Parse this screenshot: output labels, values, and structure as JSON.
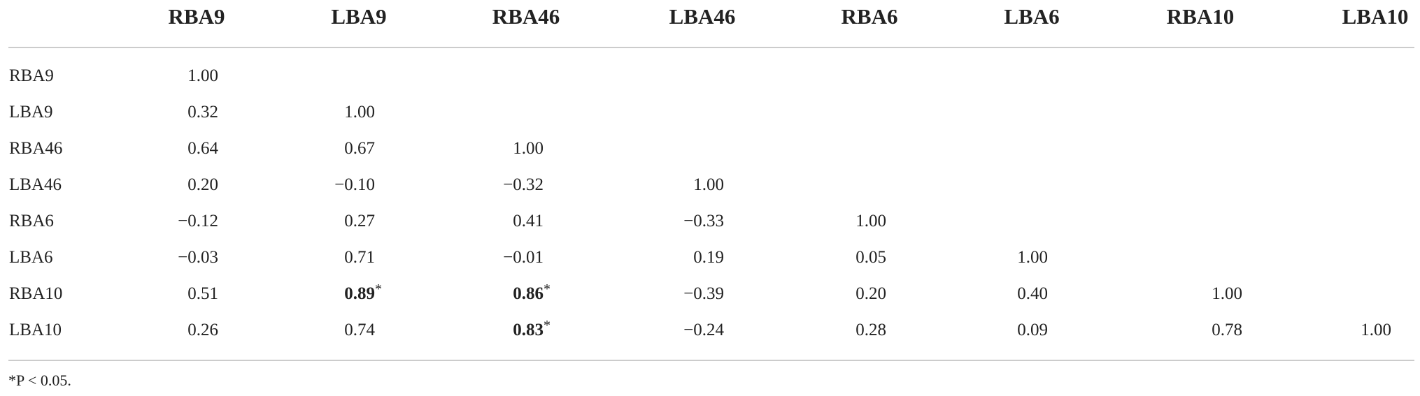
{
  "table": {
    "columns": [
      "RBA9",
      "LBA9",
      "RBA46",
      "LBA46",
      "RBA6",
      "LBA6",
      "RBA10",
      "LBA10"
    ],
    "rows": [
      {
        "label": "RBA9",
        "cells": [
          "1.00"
        ]
      },
      {
        "label": "LBA9",
        "cells": [
          "0.32",
          "1.00"
        ]
      },
      {
        "label": "RBA46",
        "cells": [
          "0.64",
          "0.67",
          "1.00"
        ]
      },
      {
        "label": "LBA46",
        "cells": [
          "0.20",
          "−0.10",
          "−0.32",
          "1.00"
        ]
      },
      {
        "label": "RBA6",
        "cells": [
          "−0.12",
          "0.27",
          "0.41",
          "−0.33",
          "1.00"
        ]
      },
      {
        "label": "LBA6",
        "cells": [
          "−0.03",
          "0.71",
          "−0.01",
          "0.19",
          "0.05",
          "1.00"
        ]
      },
      {
        "label": "RBA10",
        "cells": [
          "0.51",
          {
            "value": "0.89",
            "note": "*"
          },
          {
            "value": "0.86",
            "note": "*"
          },
          "−0.39",
          "0.20",
          "0.40",
          "1.00"
        ]
      },
      {
        "label": "LBA10",
        "cells": [
          "0.26",
          "0.74",
          {
            "value": "0.83",
            "note": "*"
          },
          "−0.24",
          "0.28",
          "0.09",
          "0.78",
          "1.00"
        ]
      }
    ],
    "footnote": "*P < 0.05."
  }
}
